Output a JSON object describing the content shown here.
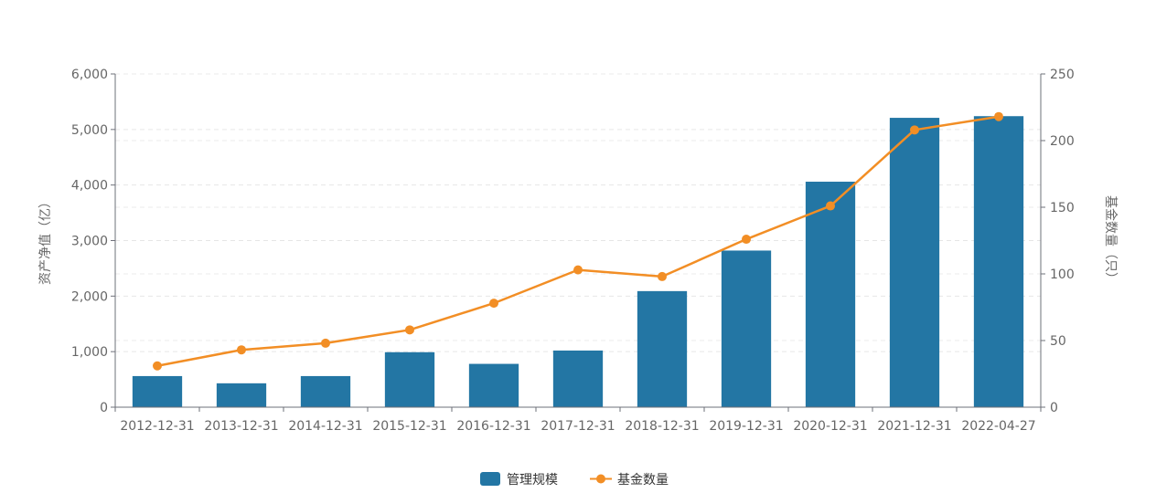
{
  "chart_data": {
    "type": "bar",
    "categories": [
      "2012-12-31",
      "2013-12-31",
      "2014-12-31",
      "2015-12-31",
      "2016-12-31",
      "2017-12-31",
      "2018-12-31",
      "2019-12-31",
      "2020-12-31",
      "2021-12-31",
      "2022-04-27"
    ],
    "ylabel_left": "资产净值（亿）",
    "ylabel_right": "基金数量（只）",
    "ylim_left": [
      0,
      6000
    ],
    "ylim_right": [
      0,
      250
    ],
    "yticks_left": [
      "0",
      "1,000",
      "2,000",
      "3,000",
      "4,000",
      "5,000",
      "6,000"
    ],
    "yticks_right": [
      "0",
      "50",
      "100",
      "150",
      "200",
      "250"
    ],
    "grid": true,
    "legend_position": "bottom-center",
    "series": [
      {
        "name": "管理规模",
        "type": "bar",
        "axis": "left",
        "color": "#2376a4",
        "values": [
          560,
          430,
          560,
          990,
          780,
          1020,
          2090,
          2820,
          4060,
          5210,
          5240
        ]
      },
      {
        "name": "基金数量",
        "type": "line",
        "axis": "right",
        "color": "#f28e25",
        "values": [
          31,
          43,
          48,
          58,
          78,
          103,
          98,
          126,
          151,
          208,
          218
        ]
      }
    ]
  }
}
